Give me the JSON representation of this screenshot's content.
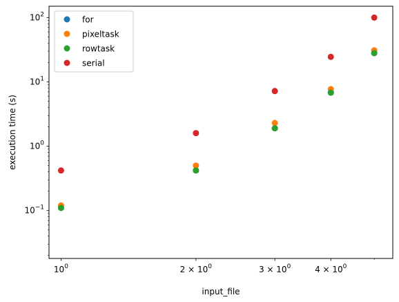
{
  "chart_data": {
    "type": "scatter",
    "xlabel": "input_file",
    "ylabel": "execution time (s)",
    "xscale": "log",
    "yscale": "log",
    "xlim": [
      0.94,
      5.5
    ],
    "ylim": [
      0.018,
      150
    ],
    "grid": false,
    "legend_position": "top-left",
    "x_ticks": [
      {
        "value": 1,
        "base": "10",
        "exp": "0"
      },
      {
        "value": 2,
        "base": "2 × 10",
        "exp": "0"
      },
      {
        "value": 3,
        "base": "3 × 10",
        "exp": "0"
      },
      {
        "value": 4,
        "base": "4 × 10",
        "exp": "0"
      }
    ],
    "y_ticks": [
      {
        "value": 0.1,
        "base": "10",
        "exp": "−1"
      },
      {
        "value": 1,
        "base": "10",
        "exp": "0"
      },
      {
        "value": 10,
        "base": "10",
        "exp": "1"
      },
      {
        "value": 100,
        "base": "10",
        "exp": "2"
      }
    ],
    "series": [
      {
        "name": "for",
        "color": "#1f77b4",
        "x": [
          1,
          2,
          3,
          4,
          5
        ],
        "y": [
          0.11,
          0.42,
          1.9,
          6.8,
          28
        ]
      },
      {
        "name": "pixeltask",
        "color": "#ff7f0e",
        "x": [
          1,
          2,
          3,
          4,
          5
        ],
        "y": [
          0.12,
          0.5,
          2.3,
          7.7,
          31
        ]
      },
      {
        "name": "rowtask",
        "color": "#2ca02c",
        "x": [
          1,
          2,
          3,
          4,
          5
        ],
        "y": [
          0.11,
          0.42,
          1.9,
          6.8,
          28
        ]
      },
      {
        "name": "serial",
        "color": "#d62728",
        "x": [
          1,
          2,
          3,
          4,
          5
        ],
        "y": [
          0.42,
          1.6,
          7.2,
          24.5,
          100
        ]
      }
    ]
  }
}
